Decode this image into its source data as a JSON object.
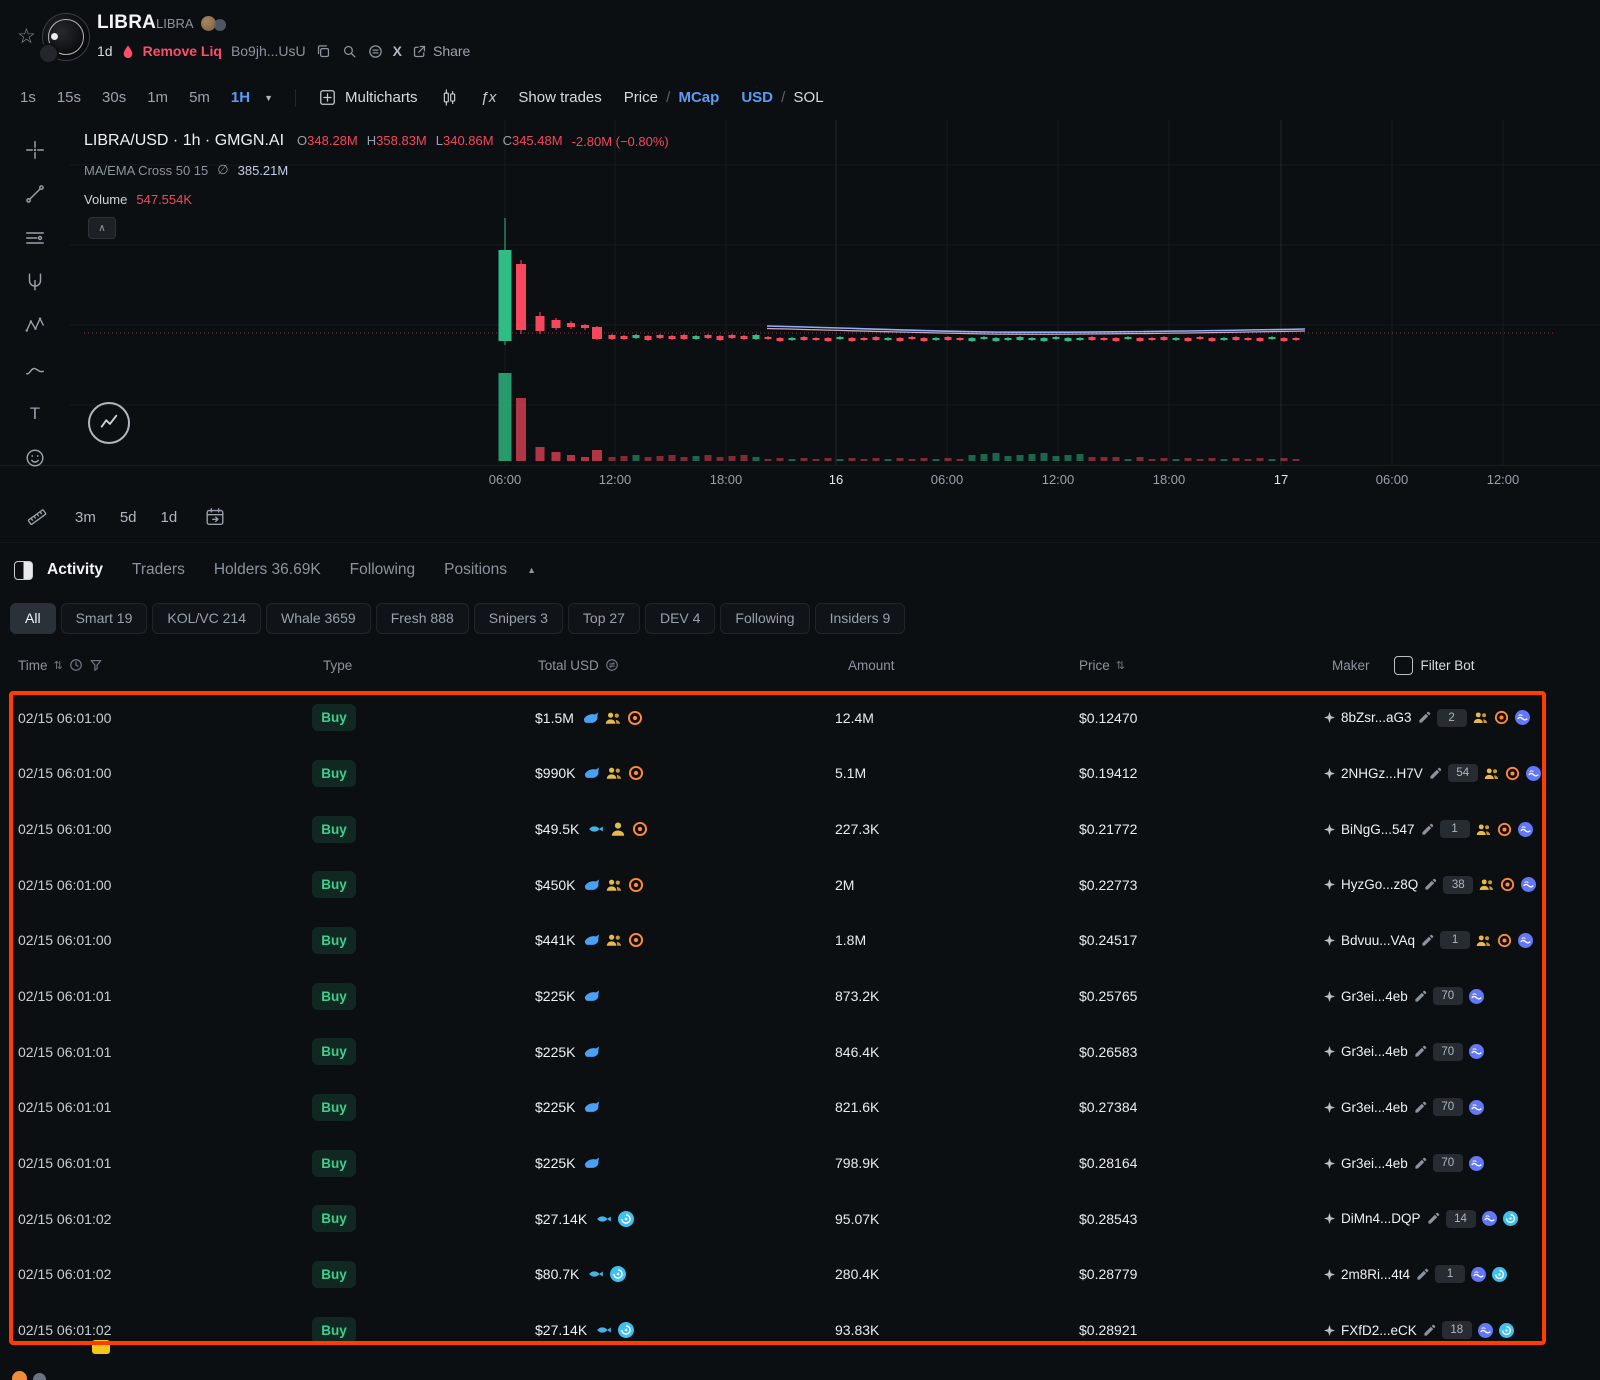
{
  "header": {
    "token_name": "LIBRA",
    "token_symbol": "LIBRA",
    "age": "1d",
    "remove_liq_label": "Remove Liq",
    "address_short": "Bo9jh...UsU",
    "share_label": "Share"
  },
  "timeframe_bar": {
    "timeframes": [
      "1s",
      "15s",
      "30s",
      "1m",
      "5m",
      "1H"
    ],
    "selected": "1H",
    "multicharts_label": "Multicharts",
    "show_trades_label": "Show trades",
    "price_label": "Price",
    "mcap_label": "MCap",
    "usd_label": "USD",
    "sol_label": "SOL",
    "slash": "/"
  },
  "chart": {
    "legend_title": "LIBRA/USD · 1h · GMGN.AI",
    "o_label": "O",
    "o_value": "348.28M",
    "h_label": "H",
    "h_value": "358.83M",
    "l_label": "L",
    "l_value": "340.86M",
    "c_label": "C",
    "c_value": "345.48M",
    "change_value": "-2.80M (−0.80%)",
    "indicator_label": "MA/EMA Cross 50 15",
    "indicator_hide_glyph": "∅",
    "indicator_value": "385.21M",
    "volume_label": "Volume",
    "volume_value": "547.554K",
    "x_ticks": [
      {
        "label": "06:00",
        "em": false
      },
      {
        "label": "12:00",
        "em": false
      },
      {
        "label": "18:00",
        "em": false
      },
      {
        "label": "16",
        "em": true
      },
      {
        "label": "06:00",
        "em": false
      },
      {
        "label": "12:00",
        "em": false
      },
      {
        "label": "18:00",
        "em": false
      },
      {
        "label": "17",
        "em": true
      },
      {
        "label": "06:00",
        "em": false
      },
      {
        "label": "12:00",
        "em": false
      }
    ],
    "range_buttons": [
      "3m",
      "5d",
      "1d"
    ]
  },
  "tabs": [
    {
      "label": "Activity",
      "active": true
    },
    {
      "label": "Traders",
      "active": false
    },
    {
      "label": "Holders 36.69K",
      "active": false
    },
    {
      "label": "Following",
      "active": false
    },
    {
      "label": "Positions",
      "active": false
    }
  ],
  "filter_pills": [
    {
      "label": "All",
      "active": true
    },
    {
      "label": "Smart 19",
      "active": false
    },
    {
      "label": "KOL/VC 214",
      "active": false
    },
    {
      "label": "Whale 3659",
      "active": false
    },
    {
      "label": "Fresh 888",
      "active": false
    },
    {
      "label": "Snipers 3",
      "active": false
    },
    {
      "label": "Top 27",
      "active": false
    },
    {
      "label": "DEV 4",
      "active": false
    },
    {
      "label": "Following",
      "active": false
    },
    {
      "label": "Insiders 9",
      "active": false
    }
  ],
  "table": {
    "headers": {
      "time": "Time",
      "type": "Type",
      "total_usd": "Total USD",
      "amount": "Amount",
      "price": "Price",
      "maker": "Maker",
      "filter_bot": "Filter Bot"
    },
    "rows": [
      {
        "time": "02/15 06:01:00",
        "type": "Buy",
        "total": "$1.5M",
        "total_icons": [
          "whale",
          "people",
          "target"
        ],
        "amount": "12.4M",
        "price": "$0.12470",
        "maker": "8bZsr...aG3",
        "count": "2",
        "maker_icons": [
          "people",
          "target",
          "wave"
        ]
      },
      {
        "time": "02/15 06:01:00",
        "type": "Buy",
        "total": "$990K",
        "total_icons": [
          "whale",
          "people",
          "target"
        ],
        "amount": "5.1M",
        "price": "$0.19412",
        "maker": "2NHGz...H7V",
        "count": "54",
        "maker_icons": [
          "people",
          "target",
          "wave"
        ]
      },
      {
        "time": "02/15 06:01:00",
        "type": "Buy",
        "total": "$49.5K",
        "total_icons": [
          "fish",
          "person",
          "target"
        ],
        "amount": "227.3K",
        "price": "$0.21772",
        "maker": "BiNgG...547",
        "count": "1",
        "maker_icons": [
          "people",
          "target",
          "wave"
        ]
      },
      {
        "time": "02/15 06:01:00",
        "type": "Buy",
        "total": "$450K",
        "total_icons": [
          "whale",
          "people",
          "target"
        ],
        "amount": "2M",
        "price": "$0.22773",
        "maker": "HyzGo...z8Q",
        "count": "38",
        "maker_icons": [
          "people",
          "target",
          "wave"
        ]
      },
      {
        "time": "02/15 06:01:00",
        "type": "Buy",
        "total": "$441K",
        "total_icons": [
          "whale",
          "people",
          "target"
        ],
        "amount": "1.8M",
        "price": "$0.24517",
        "maker": "Bdvuu...VAq",
        "count": "1",
        "maker_icons": [
          "people",
          "target",
          "wave"
        ]
      },
      {
        "time": "02/15 06:01:01",
        "type": "Buy",
        "total": "$225K",
        "total_icons": [
          "whale"
        ],
        "amount": "873.2K",
        "price": "$0.25765",
        "maker": "Gr3ei...4eb",
        "count": "70",
        "maker_icons": [
          "wave"
        ]
      },
      {
        "time": "02/15 06:01:01",
        "type": "Buy",
        "total": "$225K",
        "total_icons": [
          "whale"
        ],
        "amount": "846.4K",
        "price": "$0.26583",
        "maker": "Gr3ei...4eb",
        "count": "70",
        "maker_icons": [
          "wave"
        ]
      },
      {
        "time": "02/15 06:01:01",
        "type": "Buy",
        "total": "$225K",
        "total_icons": [
          "whale"
        ],
        "amount": "821.6K",
        "price": "$0.27384",
        "maker": "Gr3ei...4eb",
        "count": "70",
        "maker_icons": [
          "wave"
        ]
      },
      {
        "time": "02/15 06:01:01",
        "type": "Buy",
        "total": "$225K",
        "total_icons": [
          "whale"
        ],
        "amount": "798.9K",
        "price": "$0.28164",
        "maker": "Gr3ei...4eb",
        "count": "70",
        "maker_icons": [
          "wave"
        ]
      },
      {
        "time": "02/15 06:01:02",
        "type": "Buy",
        "total": "$27.14K",
        "total_icons": [
          "fish",
          "cyclone"
        ],
        "amount": "95.07K",
        "price": "$0.28543",
        "maker": "DiMn4...DQP",
        "count": "14",
        "maker_icons": [
          "wave",
          "cyclone"
        ]
      },
      {
        "time": "02/15 06:01:02",
        "type": "Buy",
        "total": "$80.7K",
        "total_icons": [
          "fish",
          "cyclone"
        ],
        "amount": "280.4K",
        "price": "$0.28779",
        "maker": "2m8Ri...4t4",
        "count": "1",
        "maker_icons": [
          "wave",
          "cyclone"
        ]
      },
      {
        "time": "02/15 06:01:02",
        "type": "Buy",
        "total": "$27.14K",
        "total_icons": [
          "fish",
          "cyclone"
        ],
        "amount": "93.83K",
        "price": "$0.28921",
        "maker": "FXfD2...eCK",
        "count": "18",
        "maker_icons": [
          "wave",
          "cyclone"
        ]
      }
    ]
  },
  "colors": {
    "accent_blue": "#5a9cf8",
    "buy_green": "#3ecf8e",
    "down_red": "#f6475d",
    "remove_liq_red": "#ff4d6b",
    "annotation_red": "#ff3d00"
  }
}
